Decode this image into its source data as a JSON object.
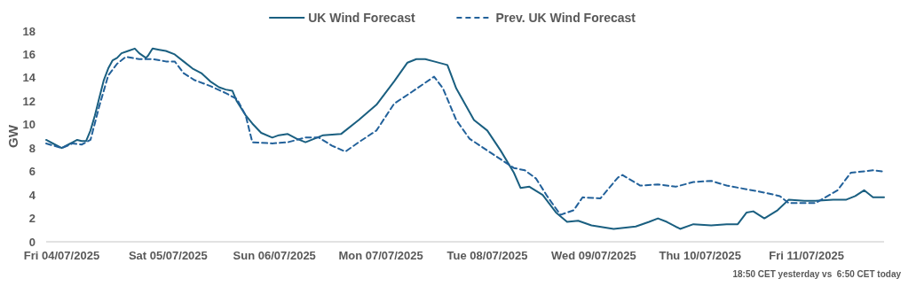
{
  "chart_data": {
    "type": "line",
    "ylabel": "GW",
    "legend": "top",
    "grid": false,
    "xlim": [
      "2025-07-03T20:30",
      "2025-07-11T17:30"
    ],
    "ylim": [
      0,
      18
    ],
    "yticks": [
      0,
      2,
      4,
      6,
      8,
      10,
      12,
      14,
      16,
      18
    ],
    "xticks": [
      {
        "value": "2025-07-04",
        "label": "Fri 04/07/2025"
      },
      {
        "value": "2025-07-05",
        "label": "Sat 05/07/2025"
      },
      {
        "value": "2025-07-06",
        "label": "Sun 06/07/2025"
      },
      {
        "value": "2025-07-07",
        "label": "Mon 07/07/2025"
      },
      {
        "value": "2025-07-08",
        "label": "Tue 08/07/2025"
      },
      {
        "value": "2025-07-09",
        "label": "Wed 09/07/2025"
      },
      {
        "value": "2025-07-10",
        "label": "Thu 10/07/2025"
      },
      {
        "value": "2025-07-11",
        "label": "Fri 11/07/2025"
      }
    ],
    "annotations": [
      "18:50 CET yesterday vs  6:50 CET today"
    ],
    "series": [
      {
        "name": "UK Wind Forecast",
        "color": "#1a5f80",
        "line_style": "solid",
        "x": [
          "2025-07-03T20:30",
          "2025-07-03T22:30",
          "2025-07-04T00:00",
          "2025-07-04T01:30",
          "2025-07-04T02:30",
          "2025-07-04T03:30",
          "2025-07-04T04:30",
          "2025-07-04T05:30",
          "2025-07-04T06:30",
          "2025-07-04T07:30",
          "2025-07-04T08:30",
          "2025-07-04T09:30",
          "2025-07-04T10:30",
          "2025-07-04T11:30",
          "2025-07-04T12:30",
          "2025-07-04T13:30",
          "2025-07-04T15:00",
          "2025-07-04T16:30",
          "2025-07-04T17:30",
          "2025-07-04T19:00",
          "2025-07-04T19:30",
          "2025-07-04T20:30",
          "2025-07-04T22:00",
          "2025-07-04T23:30",
          "2025-07-05T01:30",
          "2025-07-05T03:30",
          "2025-07-05T05:30",
          "2025-07-05T07:30",
          "2025-07-05T09:30",
          "2025-07-05T11:30",
          "2025-07-05T13:00",
          "2025-07-05T14:30",
          "2025-07-05T15:30",
          "2025-07-05T17:30",
          "2025-07-05T19:00",
          "2025-07-05T21:00",
          "2025-07-05T23:30",
          "2025-07-06T01:00",
          "2025-07-06T03:00",
          "2025-07-06T05:00",
          "2025-07-06T07:00",
          "2025-07-06T09:00",
          "2025-07-06T11:00",
          "2025-07-06T15:00",
          "2025-07-06T19:00",
          "2025-07-06T23:00",
          "2025-07-07T03:00",
          "2025-07-07T06:00",
          "2025-07-07T08:00",
          "2025-07-07T10:00",
          "2025-07-07T12:00",
          "2025-07-07T15:00",
          "2025-07-07T17:00",
          "2025-07-07T21:00",
          "2025-07-08T00:00",
          "2025-07-08T03:00",
          "2025-07-08T06:00",
          "2025-07-08T07:30",
          "2025-07-08T09:30",
          "2025-07-08T12:30",
          "2025-07-08T15:30",
          "2025-07-08T18:00",
          "2025-07-08T20:30",
          "2025-07-08T23:30",
          "2025-07-09T04:30",
          "2025-07-09T09:30",
          "2025-07-09T12:30",
          "2025-07-09T14:30",
          "2025-07-09T16:30",
          "2025-07-09T19:30",
          "2025-07-09T22:30",
          "2025-07-10T02:30",
          "2025-07-10T06:00",
          "2025-07-10T08:30",
          "2025-07-10T10:30",
          "2025-07-10T12:00",
          "2025-07-10T14:30",
          "2025-07-10T17:30",
          "2025-07-10T20:00",
          "2025-07-10T23:30",
          "2025-07-11T02:00",
          "2025-07-11T06:00",
          "2025-07-11T09:00",
          "2025-07-11T11:00",
          "2025-07-11T13:00",
          "2025-07-11T15:00",
          "2025-07-11T17:30"
        ],
        "values": [
          8.7,
          8.3,
          8.0,
          8.3,
          8.5,
          8.7,
          8.6,
          8.6,
          9.5,
          10.8,
          12.3,
          13.8,
          14.8,
          15.5,
          15.7,
          16.1,
          16.3,
          16.5,
          16.1,
          15.7,
          15.9,
          16.5,
          16.4,
          16.3,
          16.0,
          15.4,
          14.8,
          14.4,
          13.7,
          13.2,
          13.0,
          12.9,
          12.0,
          10.8,
          10.1,
          9.3,
          8.9,
          9.1,
          9.2,
          8.8,
          8.5,
          8.8,
          9.1,
          9.2,
          10.4,
          11.7,
          13.7,
          15.3,
          15.6,
          15.6,
          15.4,
          15.1,
          13.1,
          10.4,
          9.5,
          7.8,
          5.9,
          4.6,
          4.7,
          4.0,
          2.5,
          1.7,
          1.8,
          1.4,
          1.1,
          1.3,
          1.7,
          2.0,
          1.7,
          1.1,
          1.5,
          1.4,
          1.5,
          1.5,
          2.5,
          2.6,
          2.0,
          2.7,
          3.6,
          3.5,
          3.5,
          3.6,
          3.6,
          3.9,
          4.4,
          3.8,
          3.8
        ]
      },
      {
        "name": "Prev. UK Wind Forecast",
        "color": "#22619a",
        "line_style": "dashed",
        "x": [
          "2025-07-03T20:30",
          "2025-07-04T00:00",
          "2025-07-04T02:30",
          "2025-07-04T04:30",
          "2025-07-04T06:30",
          "2025-07-04T08:30",
          "2025-07-04T10:30",
          "2025-07-04T12:30",
          "2025-07-04T14:30",
          "2025-07-04T17:30",
          "2025-07-04T20:30",
          "2025-07-04T23:30",
          "2025-07-05T01:30",
          "2025-07-05T03:30",
          "2025-07-05T06:00",
          "2025-07-05T09:30",
          "2025-07-05T13:00",
          "2025-07-05T15:30",
          "2025-07-05T17:30",
          "2025-07-05T19:00",
          "2025-07-05T23:30",
          "2025-07-06T03:00",
          "2025-07-06T07:00",
          "2025-07-06T10:00",
          "2025-07-06T13:00",
          "2025-07-06T16:00",
          "2025-07-06T19:00",
          "2025-07-06T23:00",
          "2025-07-07T03:00",
          "2025-07-07T07:00",
          "2025-07-07T12:00",
          "2025-07-07T14:00",
          "2025-07-07T17:00",
          "2025-07-07T20:00",
          "2025-07-08T00:00",
          "2025-07-08T06:00",
          "2025-07-08T08:30",
          "2025-07-08T11:00",
          "2025-07-08T13:30",
          "2025-07-08T16:30",
          "2025-07-08T19:30",
          "2025-07-08T21:30",
          "2025-07-09T01:30",
          "2025-07-09T05:30",
          "2025-07-09T06:30",
          "2025-07-09T10:30",
          "2025-07-09T14:30",
          "2025-07-09T18:30",
          "2025-07-09T22:30",
          "2025-07-10T02:30",
          "2025-07-10T06:00",
          "2025-07-10T14:30",
          "2025-07-10T18:00",
          "2025-07-10T20:00",
          "2025-07-11T02:00",
          "2025-07-11T07:00",
          "2025-07-11T10:00",
          "2025-07-11T15:00",
          "2025-07-11T17:30"
        ],
        "values": [
          8.4,
          8.0,
          8.4,
          8.3,
          8.7,
          11.6,
          14.2,
          15.2,
          15.8,
          15.6,
          15.6,
          15.4,
          15.4,
          14.4,
          13.8,
          13.3,
          12.7,
          12.2,
          10.8,
          8.5,
          8.4,
          8.5,
          8.9,
          8.9,
          8.2,
          7.7,
          8.5,
          9.5,
          11.8,
          12.8,
          14.1,
          13.1,
          10.4,
          8.8,
          7.8,
          6.3,
          6.1,
          5.4,
          3.9,
          2.3,
          2.7,
          3.8,
          3.7,
          5.5,
          5.7,
          4.8,
          4.9,
          4.7,
          5.1,
          5.2,
          4.8,
          4.2,
          3.9,
          3.3,
          3.3,
          4.4,
          5.9,
          6.1,
          6.0
        ]
      }
    ]
  }
}
